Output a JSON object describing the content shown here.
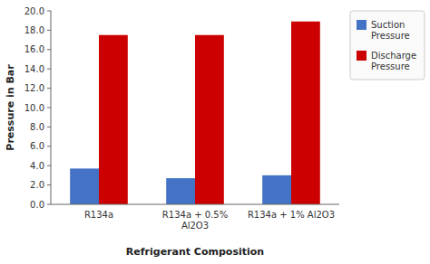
{
  "chart_data": {
    "type": "bar",
    "xlabel": "Refrigerant Composition",
    "ylabel": "Pressure in Bar",
    "categories": [
      "R134a",
      "R134a + 0.5%\nAl2O3",
      "R134a + 1% Al2O3"
    ],
    "series": [
      {
        "name": "Suction\nPressure",
        "color": "#4472C4",
        "values": [
          3.7,
          2.7,
          3.0
        ]
      },
      {
        "name": "Discharge\nPressure",
        "color": "#CC0000",
        "values": [
          17.5,
          17.5,
          18.9
        ]
      }
    ],
    "ylim": [
      0,
      20.0
    ],
    "yticks": [
      {
        "value": 0.0,
        "label": "0.0"
      },
      {
        "value": 2.0,
        "label": "2.0"
      },
      {
        "value": 4.0,
        "label": "4.0"
      },
      {
        "value": 6.0,
        "label": "6.0"
      },
      {
        "value": 8.0,
        "label": "8.0"
      },
      {
        "value": 10.0,
        "label": "10.0"
      },
      {
        "value": 12.0,
        "label": "12.0"
      },
      {
        "value": 14.0,
        "label": "14.0"
      },
      {
        "value": 16.0,
        "label": "16.0"
      },
      {
        "value": 18.0,
        "label": "18.0"
      },
      {
        "value": 20.0,
        "label": "20.0"
      }
    ],
    "grid": false,
    "legend": "right"
  }
}
